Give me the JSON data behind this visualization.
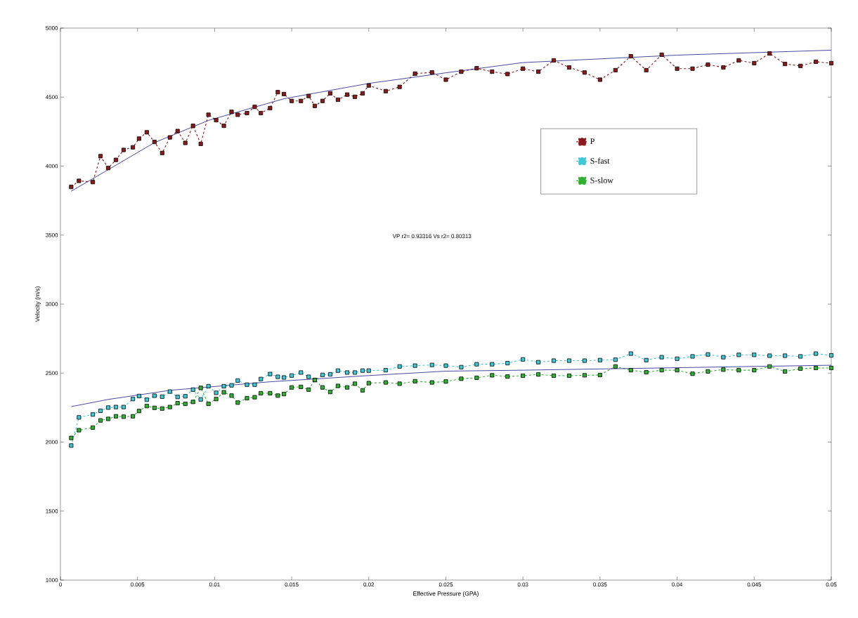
{
  "chart_data": {
    "type": "line",
    "xlabel": "Effective Pressure (GPA)",
    "ylabel": "Velocity (m/s)",
    "annotations": [
      "VP r2= 0.93316   Vs r2= 0.80313"
    ],
    "x": [
      0.0007,
      0.0012,
      0.0021,
      0.0026,
      0.0031,
      0.0036,
      0.0041,
      0.0047,
      0.0051,
      0.0056,
      0.0061,
      0.0066,
      0.0071,
      0.0076,
      0.0081,
      0.0086,
      0.0091,
      0.0096,
      0.0101,
      0.0106,
      0.0111,
      0.0115,
      0.0121,
      0.0126,
      0.013,
      0.0136,
      0.0141,
      0.0145,
      0.015,
      0.0156,
      0.0161,
      0.0165,
      0.017,
      0.0175,
      0.018,
      0.0186,
      0.0191,
      0.0196,
      0.02,
      0.0211,
      0.022,
      0.023,
      0.0241,
      0.025,
      0.026,
      0.027,
      0.028,
      0.029,
      0.03,
      0.031,
      0.032,
      0.033,
      0.034,
      0.035,
      0.036,
      0.037,
      0.038,
      0.039,
      0.04,
      0.041,
      0.042,
      0.043,
      0.044,
      0.045,
      0.046,
      0.047,
      0.048,
      0.049,
      0.05
    ],
    "series": [
      {
        "name": "P",
        "color": "#8b1a1a",
        "marker": "square",
        "line_style": "dashed",
        "values": [
          3849,
          3893,
          3884,
          4072,
          3986,
          4045,
          4117,
          4136,
          4199,
          4245,
          4175,
          4095,
          4208,
          4254,
          4168,
          4292,
          4161,
          4372,
          4333,
          4292,
          4393,
          4372,
          4384,
          4429,
          4384,
          4420,
          4536,
          4522,
          4472,
          4472,
          4508,
          4436,
          4472,
          4527,
          4481,
          4518,
          4502,
          4527,
          4584,
          4543,
          4574,
          4670,
          4679,
          4626,
          4684,
          4709,
          4684,
          4667,
          4706,
          4684,
          4766,
          4715,
          4678,
          4626,
          4695,
          4796,
          4695,
          4807,
          4706,
          4706,
          4735,
          4715,
          4766,
          4746,
          4816,
          4740,
          4726,
          4756,
          4746
        ]
      },
      {
        "name": "S-fast",
        "color": "#40c8d8",
        "marker": "square",
        "line_style": "dashed",
        "values": [
          1975,
          2179,
          2200,
          2227,
          2250,
          2254,
          2254,
          2312,
          2334,
          2307,
          2336,
          2329,
          2366,
          2327,
          2332,
          2380,
          2309,
          2405,
          2357,
          2405,
          2411,
          2446,
          2416,
          2416,
          2457,
          2493,
          2473,
          2468,
          2482,
          2504,
          2473,
          2450,
          2487,
          2491,
          2518,
          2504,
          2504,
          2518,
          2518,
          2521,
          2548,
          2554,
          2559,
          2554,
          2543,
          2564,
          2564,
          2572,
          2599,
          2579,
          2590,
          2590,
          2590,
          2594,
          2597,
          2641,
          2594,
          2615,
          2604,
          2621,
          2635,
          2615,
          2632,
          2632,
          2626,
          2626,
          2621,
          2641,
          2628
        ]
      },
      {
        "name": "S-slow",
        "color": "#30b030",
        "marker": "square",
        "line_style": "dashed",
        "values": [
          2030,
          2086,
          2105,
          2157,
          2168,
          2187,
          2184,
          2187,
          2225,
          2261,
          2248,
          2243,
          2254,
          2282,
          2277,
          2291,
          2393,
          2277,
          2312,
          2361,
          2337,
          2286,
          2318,
          2325,
          2354,
          2354,
          2337,
          2348,
          2396,
          2400,
          2380,
          2450,
          2396,
          2363,
          2407,
          2396,
          2423,
          2375,
          2427,
          2432,
          2423,
          2441,
          2432,
          2439,
          2459,
          2466,
          2484,
          2475,
          2481,
          2490,
          2481,
          2481,
          2484,
          2486,
          2548,
          2521,
          2506,
          2521,
          2521,
          2495,
          2512,
          2525,
          2521,
          2521,
          2548,
          2512,
          2532,
          2537,
          2537
        ]
      },
      {
        "type": "line",
        "color": "#1a1a8c",
        "marker": "none",
        "line_style": "solid",
        "x": [
          0.0007,
          0.0031,
          0.0061,
          0.0096,
          0.0145,
          0.02,
          0.025,
          0.03,
          0.04,
          0.05
        ],
        "values": [
          3818,
          3974,
          4170,
          4331,
          4488,
          4599,
          4676,
          4750,
          4804,
          4840
        ]
      },
      {
        "type": "line",
        "color": "#1a1a8c",
        "marker": "none",
        "line_style": "solid",
        "x": [
          0.0007,
          0.0031,
          0.0071,
          0.0136,
          0.02,
          0.025,
          0.03,
          0.04,
          0.05
        ],
        "values": [
          2257,
          2309,
          2375,
          2437,
          2482,
          2514,
          2521,
          2539,
          2557
        ]
      }
    ],
    "xlim": [
      0,
      0.05
    ],
    "ylim": [
      1000,
      5000
    ],
    "xticks": [
      0,
      0.005,
      0.01,
      0.015,
      0.02,
      0.025,
      0.03,
      0.035,
      0.04,
      0.045,
      0.05
    ],
    "yticks": [
      1000,
      1500,
      2000,
      2500,
      3000,
      3500,
      4000,
      4500,
      5000
    ],
    "grid": false,
    "legend": "right"
  }
}
